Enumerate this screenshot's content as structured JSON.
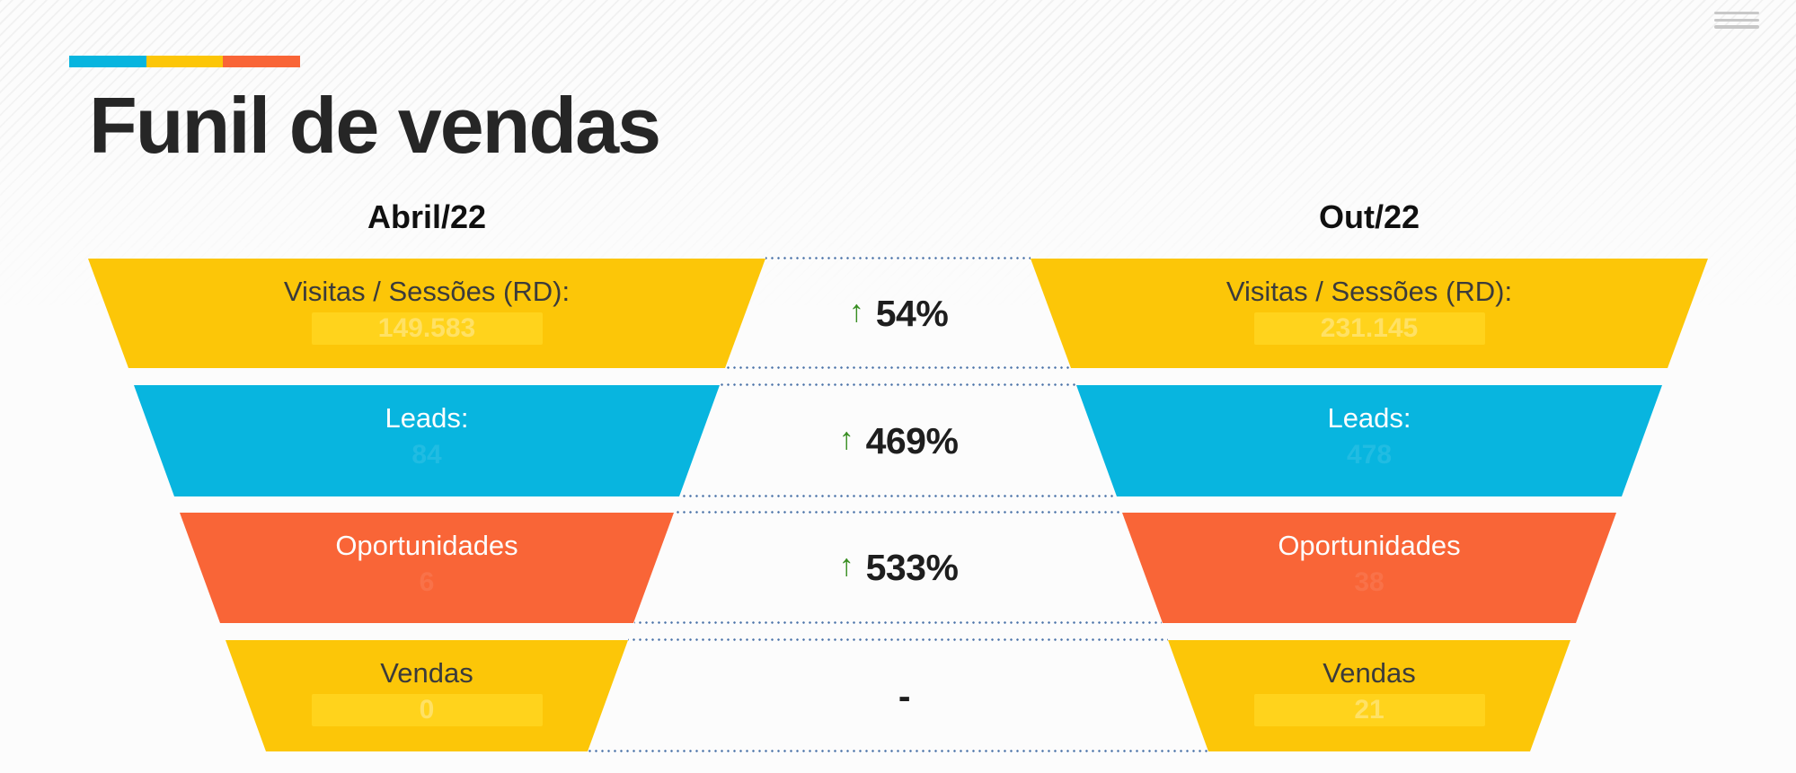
{
  "title": "Funil de vendas",
  "menu": {
    "icon": "hamburger-menu"
  },
  "accent_bar": {
    "colors": [
      "#08B5DF",
      "#FCC608",
      "#F96537"
    ]
  },
  "funnel": {
    "left_header": "Abril/22",
    "right_header": "Out/22",
    "stages": [
      {
        "label": "Visitas / Sessões (RD):",
        "left_value": "149.583",
        "right_value": "231.145",
        "color": "#FCC608",
        "change_arrow": "↑",
        "change": "54%"
      },
      {
        "label": "Leads:",
        "left_value": "84",
        "right_value": "478",
        "color": "#08B5DF",
        "change_arrow": "↑",
        "change": "469%"
      },
      {
        "label": "Oportunidades",
        "left_value": "6",
        "right_value": "38",
        "color": "#F96537",
        "change_arrow": "↑",
        "change": "533%"
      },
      {
        "label": "Vendas",
        "left_value": "0",
        "right_value": "21",
        "color": "#FCC608",
        "change_arrow": "",
        "change": "-"
      }
    ]
  },
  "chart_data": {
    "type": "funnel",
    "title": "Funil de vendas",
    "categories": [
      "Visitas / Sessões (RD)",
      "Leads",
      "Oportunidades",
      "Vendas"
    ],
    "series": [
      {
        "name": "Abril/22",
        "values": [
          149583,
          84,
          6,
          0
        ]
      },
      {
        "name": "Out/22",
        "values": [
          231145,
          478,
          38,
          21
        ]
      }
    ],
    "changes": [
      "↑ 54%",
      "↑ 469%",
      "↑ 533%",
      "-"
    ],
    "legend_position": "column headers above each funnel",
    "layout": "two mirrored 4-stage funnels with dotted connectors and % change in the middle"
  },
  "theme": {
    "yellow": "#FCC608",
    "yellow_value_highlight": "#FFD31C",
    "blue": "#08B5DF",
    "orange": "#F96537",
    "arrow_green": "#388E22",
    "dotted_line_blue": "#4A72A8",
    "title_color": "#262626",
    "hamburger_gray": "#C8C8C8"
  }
}
